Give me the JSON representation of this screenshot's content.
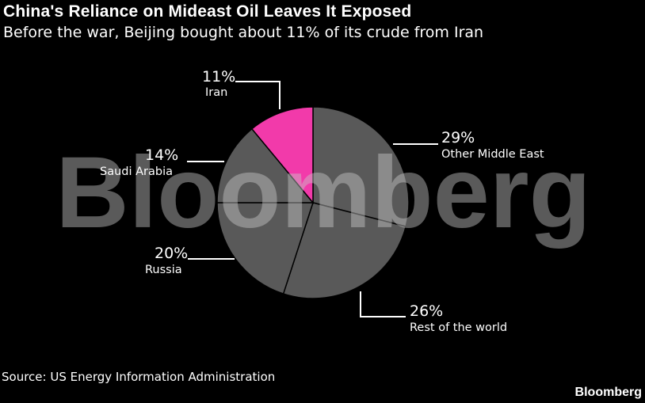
{
  "chart_data": {
    "type": "pie",
    "title": "China's Reliance on Mideast Oil Leaves It Exposed",
    "subtitle": "Before the war, Beijing bought about 11% of its crude from Iran",
    "slices": [
      {
        "label": "Other Middle East",
        "value": 29,
        "value_label": "29%",
        "color": "#595959"
      },
      {
        "label": "Rest of the world",
        "value": 26,
        "value_label": "26%",
        "color": "#595959"
      },
      {
        "label": "Russia",
        "value": 20,
        "value_label": "20%",
        "color": "#595959"
      },
      {
        "label": "Saudi Arabia",
        "value": 14,
        "value_label": "14%",
        "color": "#595959"
      },
      {
        "label": "Iran",
        "value": 11,
        "value_label": "11%",
        "color": "#f23aaa"
      }
    ],
    "start": "top, clockwise"
  },
  "source": "Source: US Energy Information Administration",
  "brand": "Bloomberg",
  "watermark": "Bloomberg"
}
